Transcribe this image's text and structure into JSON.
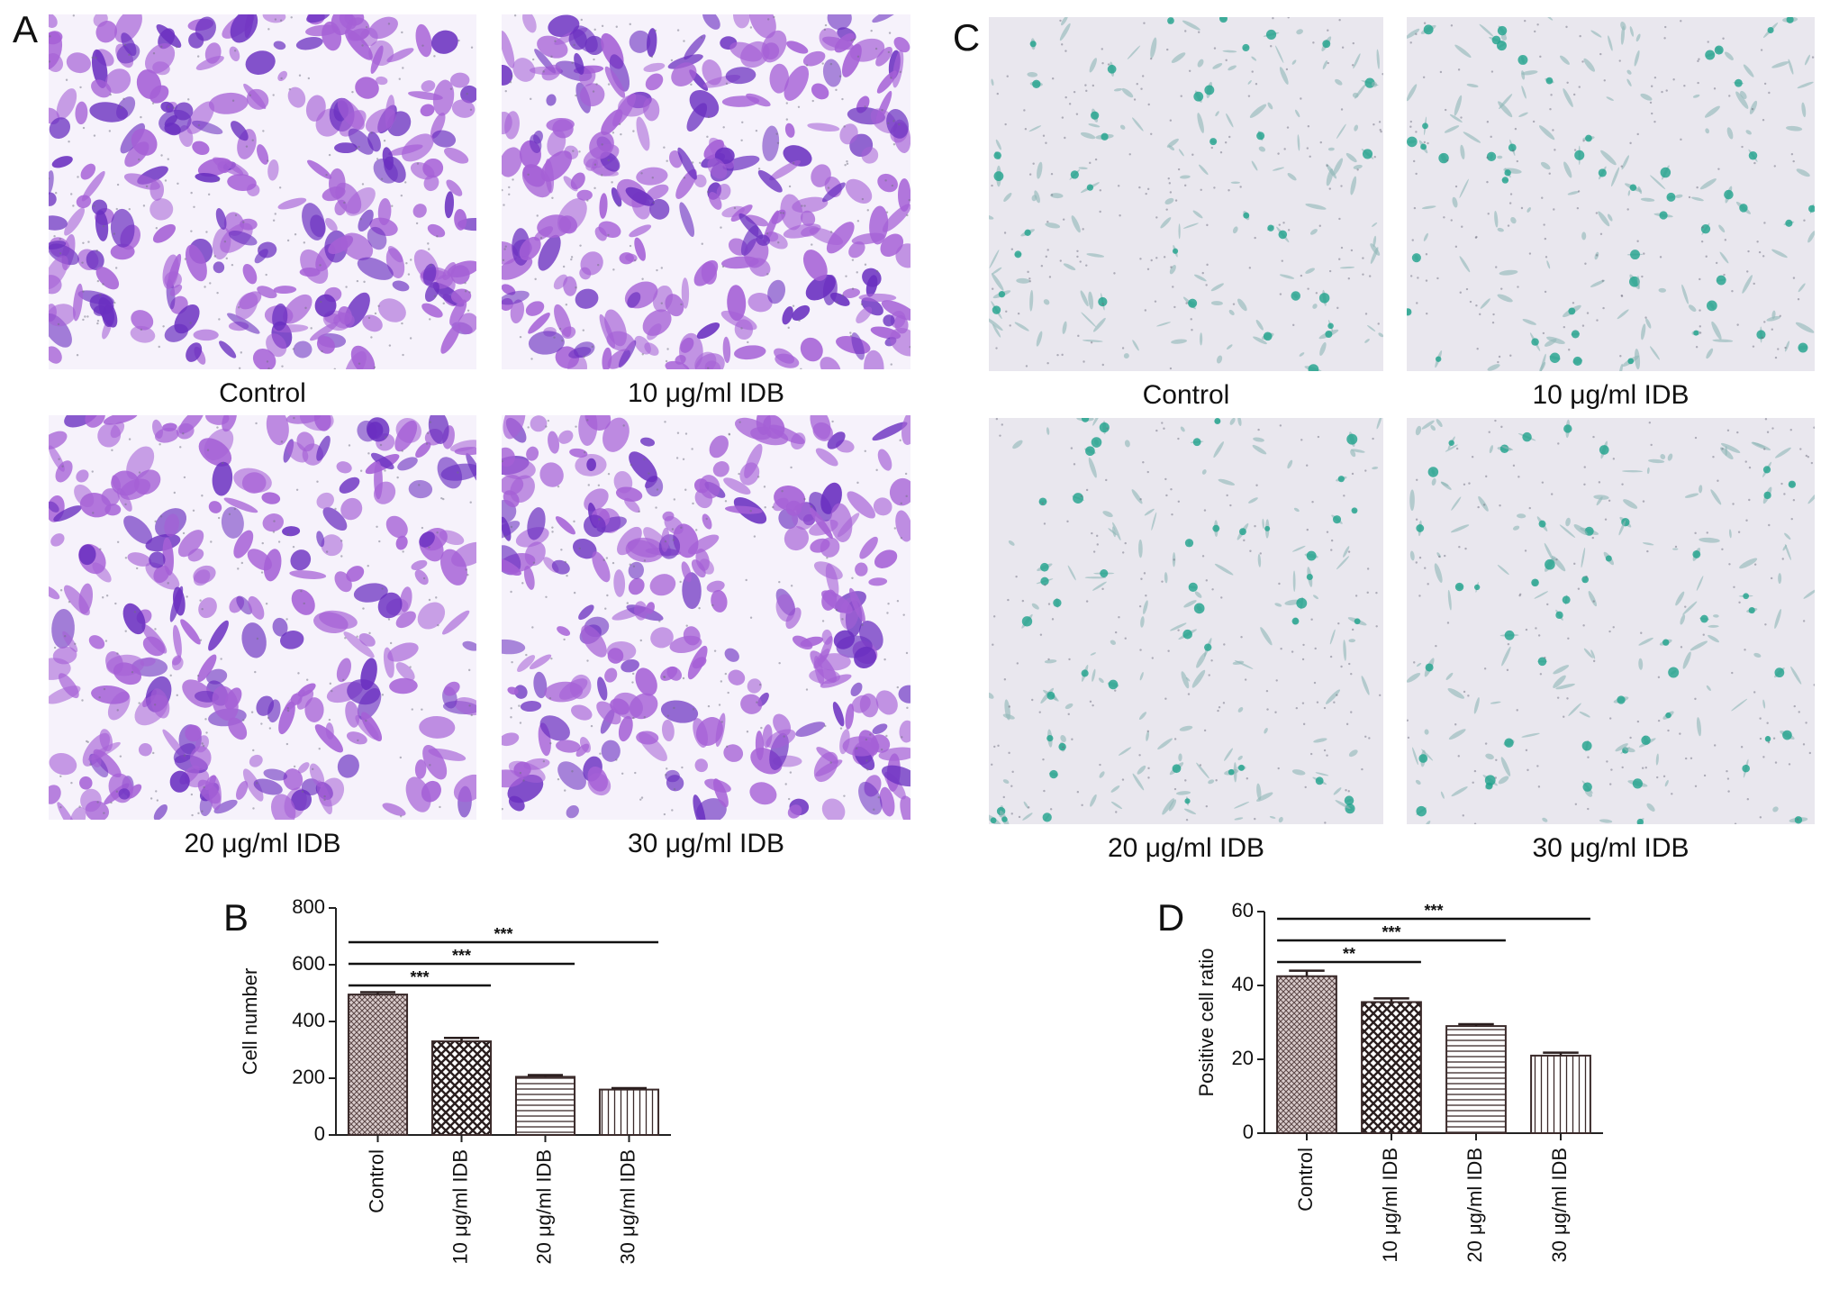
{
  "panels": [
    {
      "letter": "A",
      "labels": [
        "Control",
        "10 μg/ml IDB",
        "20 μg/ml IDB",
        "30 μg/ml IDB"
      ]
    },
    {
      "letter": "C",
      "labels": [
        "Control",
        "10 μg/ml IDB",
        "20 μg/ml IDB",
        "30 μg/ml IDB"
      ]
    }
  ],
  "chart_data": [
    {
      "type": "bar",
      "panel_label": "B",
      "y_label": "Cell number",
      "categories": [
        "Control",
        "10 μg/ml IDB",
        "20 μg/ml IDB",
        "30 μg/ml IDB"
      ],
      "values": [
        495,
        330,
        205,
        160
      ],
      "errors": [
        8,
        12,
        6,
        5
      ],
      "ylim": [
        0,
        800
      ],
      "yticks": [
        0,
        200,
        400,
        600,
        800
      ],
      "significance": [
        {
          "pair": [
            0,
            1
          ],
          "label": "***"
        },
        {
          "pair": [
            0,
            2
          ],
          "label": "***"
        },
        {
          "pair": [
            0,
            3
          ],
          "label": "***"
        }
      ]
    },
    {
      "type": "bar",
      "panel_label": "D",
      "y_label": "Positive cell ratio",
      "categories": [
        "Control",
        "10 μg/ml IDB",
        "20 μg/ml IDB",
        "30 μg/ml IDB"
      ],
      "values": [
        42.5,
        35.5,
        29,
        21
      ],
      "errors": [
        1.5,
        1,
        0.5,
        0.8
      ],
      "ylim": [
        0,
        60
      ],
      "yticks": [
        0,
        20,
        40,
        60
      ],
      "significance": [
        {
          "pair": [
            0,
            1
          ],
          "label": "**"
        },
        {
          "pair": [
            0,
            2
          ],
          "label": "***"
        },
        {
          "pair": [
            0,
            3
          ],
          "label": "***"
        }
      ]
    }
  ]
}
